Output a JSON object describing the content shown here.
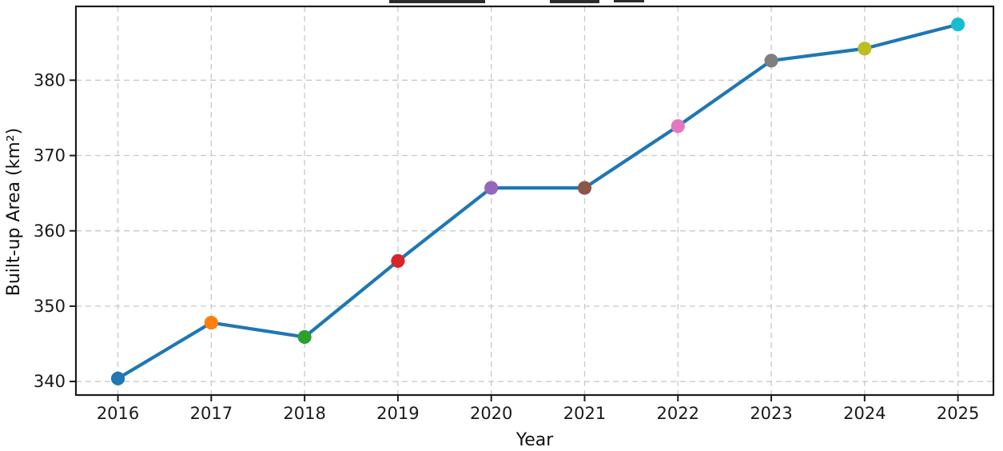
{
  "figure": {
    "background": "#ffffff",
    "note_title_clipped": "chart title is cut off at top edge (illegible fragments only)"
  },
  "chart_data": {
    "type": "line",
    "title": "",
    "xlabel": "Year",
    "ylabel": "Built-up Area (km²)",
    "x": [
      2016,
      2017,
      2018,
      2019,
      2020,
      2021,
      2022,
      2023,
      2024,
      2025
    ],
    "values": [
      340.4,
      347.8,
      345.9,
      356.0,
      365.7,
      365.7,
      373.9,
      382.6,
      384.2,
      387.4
    ],
    "xlim": [
      2015.55,
      2025.38
    ],
    "ylim": [
      338.2,
      389.8
    ],
    "x_ticks": [
      2016,
      2017,
      2018,
      2019,
      2020,
      2021,
      2022,
      2023,
      2024,
      2025
    ],
    "x_tick_labels": [
      "2016",
      "2017",
      "2018",
      "2019",
      "2020",
      "2021",
      "2022",
      "2023",
      "2024",
      "2025"
    ],
    "y_ticks": [
      340,
      350,
      360,
      370,
      380
    ],
    "y_tick_labels": [
      "340",
      "350",
      "360",
      "370",
      "380"
    ],
    "grid": true,
    "grid_style": "dashed",
    "grid_color": "#c9c9c9",
    "line_color": "#1f77b4",
    "frame_color": "#1a1a1a",
    "marker_colors": [
      "#1f77b4",
      "#ff7f0e",
      "#2ca02c",
      "#d62728",
      "#9467bd",
      "#8c564b",
      "#e377c2",
      "#7f7f7f",
      "#bcbd22",
      "#17becf"
    ],
    "legend": null
  }
}
